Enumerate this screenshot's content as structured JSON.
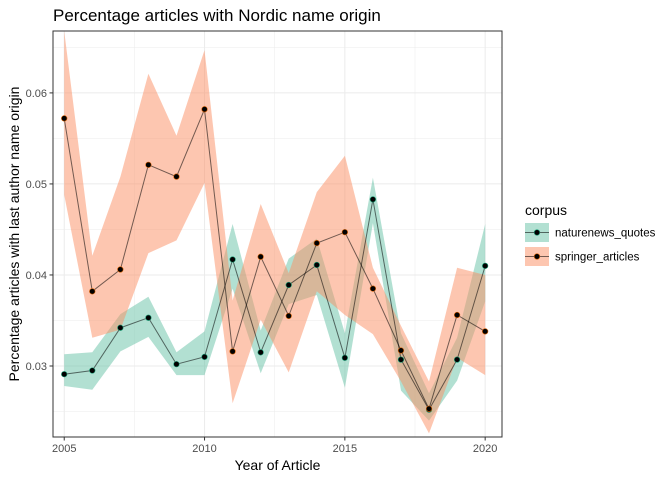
{
  "chart_data": {
    "type": "line",
    "title": "Percentage articles with Nordic name origin",
    "xlabel": "Year of Article",
    "ylabel": "Percentage articles with last author name origin",
    "xlim": [
      2004.6,
      2020.6
    ],
    "ylim": [
      0.0222,
      0.0668
    ],
    "x_ticks": [
      2005,
      2010,
      2015,
      2020
    ],
    "x_tick_labels": [
      "2005",
      "2010",
      "2015",
      "2020"
    ],
    "y_ticks": [
      0.03,
      0.04,
      0.05,
      0.06
    ],
    "y_tick_labels": [
      "0.03",
      "0.04",
      "0.05",
      "0.06"
    ],
    "grid": true,
    "legend": {
      "title": "corpus",
      "placement": "right"
    },
    "x": [
      2005,
      2006,
      2007,
      2008,
      2009,
      2010,
      2011,
      2012,
      2013,
      2014,
      2015,
      2016,
      2017,
      2018,
      2019,
      2020
    ],
    "series": [
      {
        "name": "naturenews_quotes",
        "color": "#1b9e77",
        "fill": "#66c2a5",
        "values": [
          0.0291,
          0.0295,
          0.0342,
          0.0353,
          0.0302,
          0.031,
          0.0417,
          0.0315,
          0.0389,
          0.0411,
          0.0309,
          0.0483,
          0.0307,
          0.0252,
          0.0307,
          0.041
        ],
        "lower": [
          0.0278,
          0.0274,
          0.0316,
          0.0332,
          0.029,
          0.029,
          0.0385,
          0.0292,
          0.0368,
          0.0378,
          0.0276,
          0.0457,
          0.0273,
          0.024,
          0.0284,
          0.0371
        ],
        "upper": [
          0.0313,
          0.0315,
          0.0357,
          0.0376,
          0.0315,
          0.0338,
          0.0456,
          0.0339,
          0.0418,
          0.044,
          0.0336,
          0.0507,
          0.0336,
          0.027,
          0.0331,
          0.0456
        ]
      },
      {
        "name": "springer_articles",
        "color": "#d95f02",
        "fill": "#fc8d62",
        "values": [
          0.0572,
          0.0382,
          0.0406,
          0.0521,
          0.0508,
          0.0582,
          0.0316,
          0.042,
          0.0355,
          0.0435,
          0.0447,
          0.0385,
          0.0317,
          0.0253,
          0.0356,
          0.0338
        ],
        "lower": [
          0.0488,
          0.0331,
          0.034,
          0.0424,
          0.0438,
          0.0501,
          0.0259,
          0.0351,
          0.0293,
          0.0382,
          0.0356,
          0.0335,
          0.0283,
          0.0226,
          0.0309,
          0.029
        ],
        "upper": [
          0.0668,
          0.0421,
          0.0508,
          0.0621,
          0.0553,
          0.0647,
          0.0372,
          0.0478,
          0.0402,
          0.0491,
          0.0531,
          0.0408,
          0.0344,
          0.0283,
          0.0408,
          0.04
        ]
      }
    ]
  }
}
